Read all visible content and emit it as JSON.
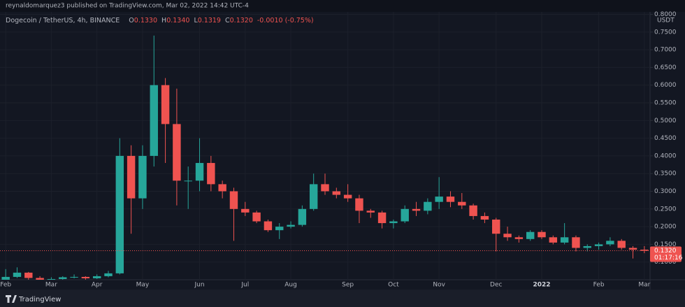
{
  "header": {
    "published": "reynaldomarquez3 published on TradingView.com, Mar 02, 2022 14:42 UTC-4"
  },
  "footer": {
    "brand": "TradingView"
  },
  "chart_data": {
    "type": "candlestick",
    "symbol": "Dogecoin / TetherUS, 4h, BINANCE",
    "ohlc_legend": [
      {
        "label": "O",
        "value": "0.1330"
      },
      {
        "label": "H",
        "value": "0.1340"
      },
      {
        "label": "L",
        "value": "0.1319"
      },
      {
        "label": "C",
        "value": "0.1320"
      }
    ],
    "change": "-0.0010 (-0.75%)",
    "currency": "USDT",
    "categories": [
      "Feb",
      null,
      null,
      null,
      "Mar",
      null,
      null,
      null,
      "Apr",
      null,
      null,
      null,
      "May",
      null,
      null,
      null,
      null,
      "Jun",
      null,
      null,
      null,
      "Jul",
      null,
      null,
      null,
      "Aug",
      null,
      null,
      null,
      null,
      "Sep",
      null,
      null,
      null,
      "Oct",
      null,
      null,
      null,
      "Nov",
      null,
      null,
      null,
      null,
      "Dec",
      null,
      null,
      null,
      "2022",
      null,
      null,
      null,
      null,
      "Feb",
      null,
      null,
      null,
      "Mar"
    ],
    "open": [
      0.035,
      0.058,
      0.07,
      0.055,
      0.05,
      0.052,
      0.057,
      0.058,
      0.054,
      0.06,
      0.068,
      0.4,
      0.28,
      0.4,
      0.6,
      0.49,
      0.33,
      0.33,
      0.38,
      0.32,
      0.3,
      0.25,
      0.24,
      0.215,
      0.19,
      0.2,
      0.205,
      0.25,
      0.32,
      0.3,
      0.29,
      0.28,
      0.245,
      0.24,
      0.21,
      0.215,
      0.25,
      0.245,
      0.27,
      0.285,
      0.27,
      0.26,
      0.23,
      0.22,
      0.18,
      0.17,
      0.165,
      0.185,
      0.17,
      0.155,
      0.17,
      0.14,
      0.145,
      0.15,
      0.16,
      0.14,
      0.135
    ],
    "high": [
      0.08,
      0.085,
      0.072,
      0.06,
      0.057,
      0.06,
      0.065,
      0.06,
      0.065,
      0.075,
      0.45,
      0.43,
      0.43,
      0.74,
      0.62,
      0.59,
      0.37,
      0.45,
      0.4,
      0.33,
      0.31,
      0.27,
      0.245,
      0.22,
      0.21,
      0.215,
      0.26,
      0.35,
      0.35,
      0.31,
      0.32,
      0.29,
      0.25,
      0.245,
      0.22,
      0.26,
      0.27,
      0.28,
      0.34,
      0.3,
      0.295,
      0.265,
      0.24,
      0.225,
      0.2,
      0.175,
      0.19,
      0.19,
      0.175,
      0.21,
      0.175,
      0.15,
      0.155,
      0.17,
      0.165,
      0.145,
      0.145
    ],
    "low": [
      0.034,
      0.055,
      0.05,
      0.045,
      0.048,
      0.05,
      0.054,
      0.05,
      0.052,
      0.057,
      0.065,
      0.18,
      0.25,
      0.37,
      0.38,
      0.26,
      0.25,
      0.3,
      0.3,
      0.28,
      0.16,
      0.23,
      0.21,
      0.185,
      0.165,
      0.195,
      0.2,
      0.245,
      0.29,
      0.28,
      0.27,
      0.21,
      0.225,
      0.195,
      0.195,
      0.21,
      0.23,
      0.235,
      0.25,
      0.255,
      0.25,
      0.22,
      0.21,
      0.13,
      0.16,
      0.155,
      0.16,
      0.165,
      0.15,
      0.15,
      0.13,
      0.13,
      0.135,
      0.145,
      0.135,
      0.11,
      0.125
    ],
    "close": [
      0.058,
      0.07,
      0.055,
      0.05,
      0.052,
      0.057,
      0.058,
      0.054,
      0.06,
      0.068,
      0.4,
      0.28,
      0.4,
      0.6,
      0.49,
      0.33,
      0.33,
      0.38,
      0.32,
      0.3,
      0.25,
      0.24,
      0.215,
      0.19,
      0.2,
      0.205,
      0.25,
      0.32,
      0.3,
      0.29,
      0.28,
      0.245,
      0.24,
      0.21,
      0.215,
      0.25,
      0.245,
      0.27,
      0.285,
      0.27,
      0.26,
      0.23,
      0.22,
      0.18,
      0.17,
      0.165,
      0.185,
      0.17,
      0.155,
      0.17,
      0.14,
      0.145,
      0.15,
      0.16,
      0.14,
      0.135,
      0.132
    ],
    "up_color": "#26a69a",
    "down_color": "#ef5350",
    "ylim": [
      0.05,
      0.807
    ],
    "yticks": [
      {
        "value": 0.1,
        "label": "0.1000"
      },
      {
        "value": 0.15,
        "label": "0.1500"
      },
      {
        "value": 0.2,
        "label": "0.2000"
      },
      {
        "value": 0.25,
        "label": "0.2500"
      },
      {
        "value": 0.3,
        "label": "0.3000"
      },
      {
        "value": 0.35,
        "label": "0.3500"
      },
      {
        "value": 0.4,
        "label": "0.4000"
      },
      {
        "value": 0.45,
        "label": "0.4500"
      },
      {
        "value": 0.5,
        "label": "0.5000"
      },
      {
        "value": 0.55,
        "label": "0.5500"
      },
      {
        "value": 0.6,
        "label": "0.6000"
      },
      {
        "value": 0.65,
        "label": "0.6500"
      },
      {
        "value": 0.7,
        "label": "0.7000"
      },
      {
        "value": 0.75,
        "label": "0.7500"
      },
      {
        "value": 0.8,
        "label": "0.8000"
      }
    ],
    "grid": true,
    "last_price": {
      "value": 0.132,
      "label": "0.1320"
    },
    "countdown": "01:17:16"
  }
}
